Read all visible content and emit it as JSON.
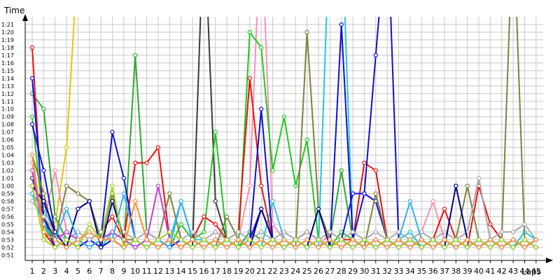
{
  "chart_data": {
    "type": "line",
    "xlabel": "Laps",
    "ylabel": "Time",
    "grid": true,
    "legend": "none",
    "x": [
      1,
      2,
      3,
      4,
      5,
      6,
      7,
      8,
      9,
      10,
      11,
      12,
      13,
      14,
      15,
      16,
      17,
      18,
      19,
      20,
      21,
      22,
      23,
      24,
      25,
      26,
      27,
      28,
      29,
      30,
      31,
      32,
      33,
      34,
      35,
      36,
      37,
      38,
      39,
      40,
      41,
      42,
      43,
      44,
      45
    ],
    "y_ticks": [
      "0:51",
      "0:52",
      "0:53",
      "0:54",
      "0:55",
      "0:56",
      "0:57",
      "0:58",
      "0:59",
      "1:00",
      "1:01",
      "1:02",
      "1:03",
      "1:04",
      "1:05",
      "1:06",
      "1:07",
      "1:08",
      "1:09",
      "1:10",
      "1:11",
      "1:12",
      "1:13",
      "1:14",
      "1:15",
      "1:16",
      "1:17",
      "1:18",
      "1:19",
      "1:20",
      "1:21"
    ],
    "y_tick_seconds": [
      51,
      52,
      53,
      54,
      55,
      56,
      57,
      58,
      59,
      60,
      61,
      62,
      63,
      64,
      65,
      66,
      67,
      68,
      69,
      70,
      71,
      72,
      73,
      74,
      75,
      76,
      77,
      78,
      79,
      80,
      81
    ],
    "ylim_seconds": [
      50.3,
      82
    ],
    "series": [
      {
        "color": "#e6c800",
        "values": [
          60,
          53,
          55,
          65,
          90,
          90,
          90,
          90,
          90,
          90,
          90,
          90,
          90,
          90,
          90,
          90,
          90,
          90,
          90,
          90,
          90,
          90,
          90,
          90,
          90,
          90,
          90,
          90,
          90,
          90,
          90,
          90,
          90,
          90,
          90,
          90,
          90,
          90,
          90,
          90,
          90,
          90,
          90,
          90,
          90
        ]
      },
      {
        "color": "#ff8fb0",
        "values": [
          63,
          55,
          62,
          54,
          53,
          54,
          53,
          54,
          53,
          52,
          53,
          52,
          53,
          52,
          53,
          52,
          53,
          52,
          53,
          60,
          95,
          55,
          53,
          52,
          53,
          52,
          54,
          53,
          52,
          53,
          52,
          53,
          52,
          53,
          54,
          58,
          53,
          52,
          53,
          52,
          53,
          52,
          53,
          52,
          53
        ]
      },
      {
        "color": "#3a3a3a",
        "values": [
          61,
          56,
          53,
          52,
          53,
          52,
          53,
          53,
          52,
          53,
          52,
          53,
          54,
          53,
          52,
          95,
          58,
          53,
          52,
          53,
          52,
          53,
          52,
          53,
          54,
          53,
          52,
          53,
          52,
          53,
          52,
          53,
          52,
          53,
          52,
          53,
          52,
          53,
          52,
          53,
          52,
          53,
          52,
          53,
          52
        ]
      },
      {
        "color": "#20c8e0",
        "values": [
          59,
          57,
          54,
          53,
          52,
          53,
          52,
          54,
          53,
          52,
          53,
          52,
          53,
          58,
          53,
          53,
          52,
          53,
          52,
          53,
          52,
          58,
          53,
          52,
          53,
          52,
          95,
          95,
          53,
          52,
          53,
          52,
          53,
          54,
          52,
          53,
          52,
          53,
          52,
          53,
          52,
          53,
          52,
          54,
          53
        ]
      },
      {
        "color": "#2fa82f",
        "values": [
          72,
          70,
          56,
          53,
          52,
          53,
          52,
          53,
          52,
          77,
          54,
          53,
          52,
          53,
          52,
          53,
          52,
          53,
          52,
          54,
          53,
          52,
          53,
          52,
          53,
          52,
          53,
          62,
          53,
          52,
          53,
          52,
          53,
          52,
          53,
          52,
          53,
          52,
          53,
          52,
          53,
          52,
          53,
          52,
          53
        ]
      },
      {
        "color": "#20c820",
        "values": [
          69,
          55,
          52,
          53,
          52,
          53,
          52,
          53,
          52,
          53,
          52,
          53,
          52,
          55,
          53,
          54,
          67,
          53,
          52,
          80,
          78,
          62,
          69,
          60,
          66,
          53,
          52,
          54,
          53,
          52,
          53,
          52,
          53,
          52,
          53,
          52,
          53,
          52,
          53,
          52,
          53,
          52,
          53,
          52,
          53
        ]
      },
      {
        "color": "#ee1010",
        "values": [
          78,
          54,
          52,
          53,
          52,
          53,
          54,
          56,
          53,
          63,
          63,
          65,
          53,
          52,
          53,
          56,
          55,
          53,
          54,
          74,
          60,
          53,
          52,
          53,
          54,
          53,
          52,
          53,
          53,
          63,
          62,
          53,
          52,
          53,
          52,
          53,
          57,
          53,
          52,
          60,
          55,
          53,
          52,
          53,
          52
        ]
      },
      {
        "color": "#1010cc",
        "values": [
          68,
          62,
          54,
          52,
          53,
          52,
          53,
          67,
          61,
          53,
          52,
          53,
          52,
          53,
          52,
          53,
          52,
          53,
          52,
          53,
          70,
          53,
          52,
          53,
          52,
          53,
          52,
          81,
          53,
          59,
          77,
          95,
          53,
          52,
          53,
          52,
          53,
          52,
          53,
          52,
          53,
          52,
          53,
          52,
          53
        ]
      },
      {
        "color": "#1010ee",
        "values": [
          74,
          56,
          52,
          53,
          52,
          53,
          52,
          53,
          52,
          53,
          52,
          53,
          52,
          53,
          52,
          53,
          52,
          53,
          52,
          53,
          57,
          53,
          52,
          53,
          52,
          53,
          52,
          53,
          59,
          59,
          58,
          53,
          52,
          53,
          52,
          53,
          52,
          53,
          52,
          53,
          52,
          53,
          52,
          53,
          52
        ]
      },
      {
        "color": "#808040",
        "values": [
          64,
          59,
          53,
          60,
          59,
          58,
          53,
          59,
          53,
          53,
          52,
          53,
          59,
          53,
          52,
          53,
          52,
          56,
          53,
          52,
          53,
          52,
          53,
          52,
          80,
          57,
          53,
          52,
          53,
          52,
          59,
          53,
          52,
          53,
          52,
          53,
          52,
          53,
          60,
          53,
          52,
          53,
          95,
          53,
          52
        ]
      },
      {
        "color": "#a8a8a8",
        "values": [
          58,
          56,
          54,
          53,
          54,
          53,
          54,
          53,
          54,
          53,
          54,
          53,
          54,
          53,
          54,
          53,
          54,
          53,
          54,
          53,
          54,
          53,
          54,
          53,
          54,
          53,
          54,
          53,
          54,
          53,
          54,
          53,
          54,
          53,
          54,
          53,
          54,
          53,
          54,
          61,
          53,
          54,
          54,
          55,
          53
        ]
      },
      {
        "color": "#000080",
        "values": [
          60,
          58,
          54,
          52,
          57,
          58,
          52,
          58,
          53,
          52,
          53,
          52,
          53,
          52,
          53,
          52,
          53,
          52,
          53,
          52,
          57,
          53,
          52,
          53,
          52,
          57,
          52,
          53,
          52,
          53,
          52,
          53,
          52,
          53,
          52,
          53,
          52,
          60,
          53,
          52,
          53,
          52,
          53,
          52,
          53
        ]
      },
      {
        "color": "#c040e0",
        "values": [
          62,
          54,
          53,
          54,
          53,
          52,
          53,
          54,
          53,
          52,
          53,
          60,
          53,
          52,
          53,
          52,
          53,
          52,
          53,
          52,
          53,
          52,
          53,
          52,
          53,
          52,
          53,
          52,
          53,
          52,
          53,
          52,
          53,
          52,
          53,
          52,
          53,
          52,
          53,
          52,
          53,
          52,
          53,
          52,
          53
        ]
      },
      {
        "color": "#30b0f0",
        "values": [
          59,
          55,
          53,
          57,
          53,
          52,
          53,
          53,
          59,
          53,
          52,
          53,
          52,
          58,
          53,
          52,
          53,
          52,
          53,
          52,
          53,
          52,
          53,
          52,
          53,
          52,
          53,
          52,
          53,
          52,
          53,
          52,
          53,
          58,
          53,
          52,
          53,
          52,
          53,
          52,
          53,
          52,
          53,
          52,
          53
        ]
      },
      {
        "color": "#a0d820",
        "values": [
          60,
          53,
          52,
          53,
          52,
          55,
          53,
          60,
          52,
          53,
          52,
          53,
          54,
          53,
          52,
          53,
          52,
          53,
          52,
          53,
          52,
          53,
          52,
          53,
          52,
          53,
          52,
          53,
          52,
          53,
          52,
          53,
          52,
          53,
          52,
          53,
          52,
          53,
          52,
          53,
          52,
          53,
          52,
          53,
          52
        ]
      },
      {
        "color": "#ff9030",
        "values": [
          64,
          54,
          53,
          52,
          53,
          54,
          53,
          53,
          52,
          58,
          53,
          52,
          53,
          52,
          53,
          52,
          53,
          52,
          53,
          52,
          53,
          52,
          53,
          52,
          53,
          52,
          53,
          52,
          53,
          52,
          53,
          52,
          53,
          52,
          53,
          52,
          53,
          52,
          53,
          52,
          53,
          52,
          53,
          52,
          53
        ]
      }
    ]
  }
}
